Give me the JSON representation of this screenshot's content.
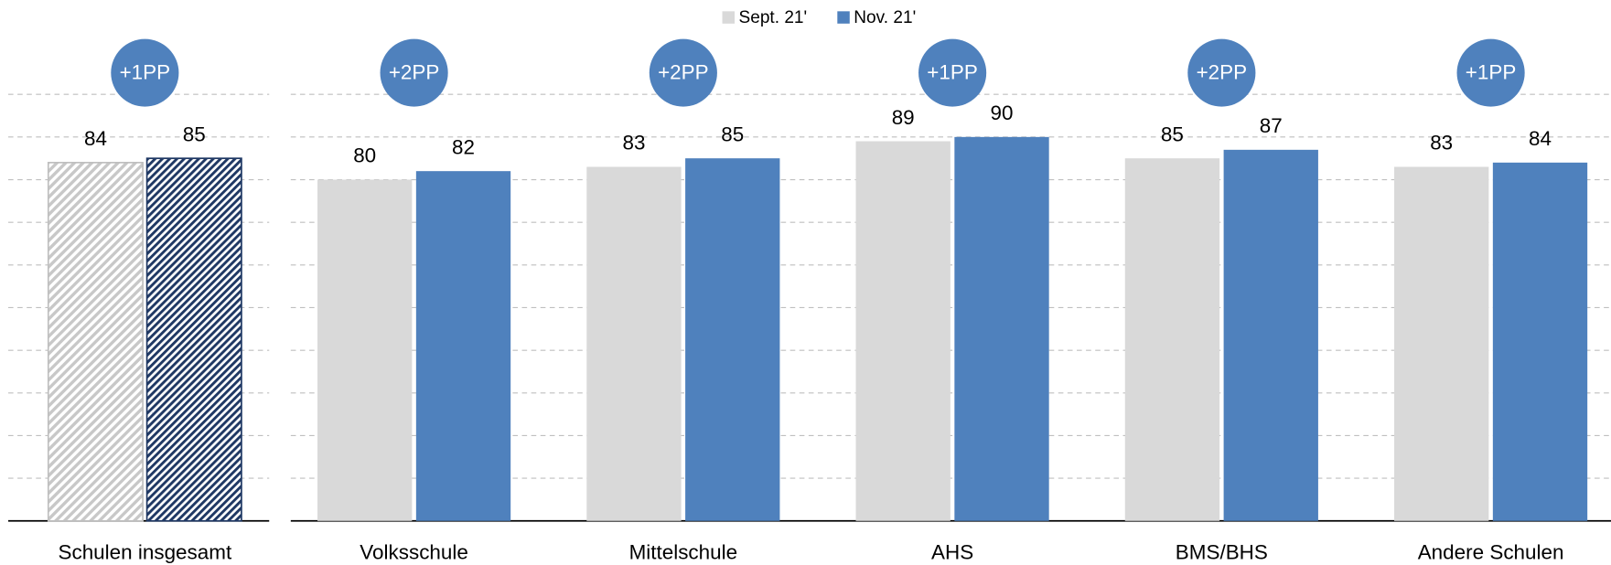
{
  "chart_data": {
    "type": "bar",
    "categories": [
      "Schulen insgesamt",
      "Volksschule",
      "Mittelschule",
      "AHS",
      "BMS/BHS",
      "Andere Schulen"
    ],
    "series": [
      {
        "name": "Sept. 21'",
        "color": "#d9d9d9",
        "values": [
          84,
          80,
          83,
          89,
          85,
          83
        ]
      },
      {
        "name": "Nov. 21'",
        "color": "#4f81bd",
        "values": [
          85,
          82,
          85,
          90,
          87,
          84
        ]
      }
    ],
    "annotations": [
      "+1PP",
      "+2PP",
      "+2PP",
      "+1PP",
      "+2PP",
      "+1PP"
    ],
    "annotation_color": "#4f81bd",
    "hatched_category": 0,
    "ylim": [
      0,
      100
    ],
    "yticks": [
      0,
      10,
      20,
      30,
      40,
      50,
      60,
      70,
      80,
      90,
      100
    ],
    "grid": true,
    "legend": "top"
  }
}
